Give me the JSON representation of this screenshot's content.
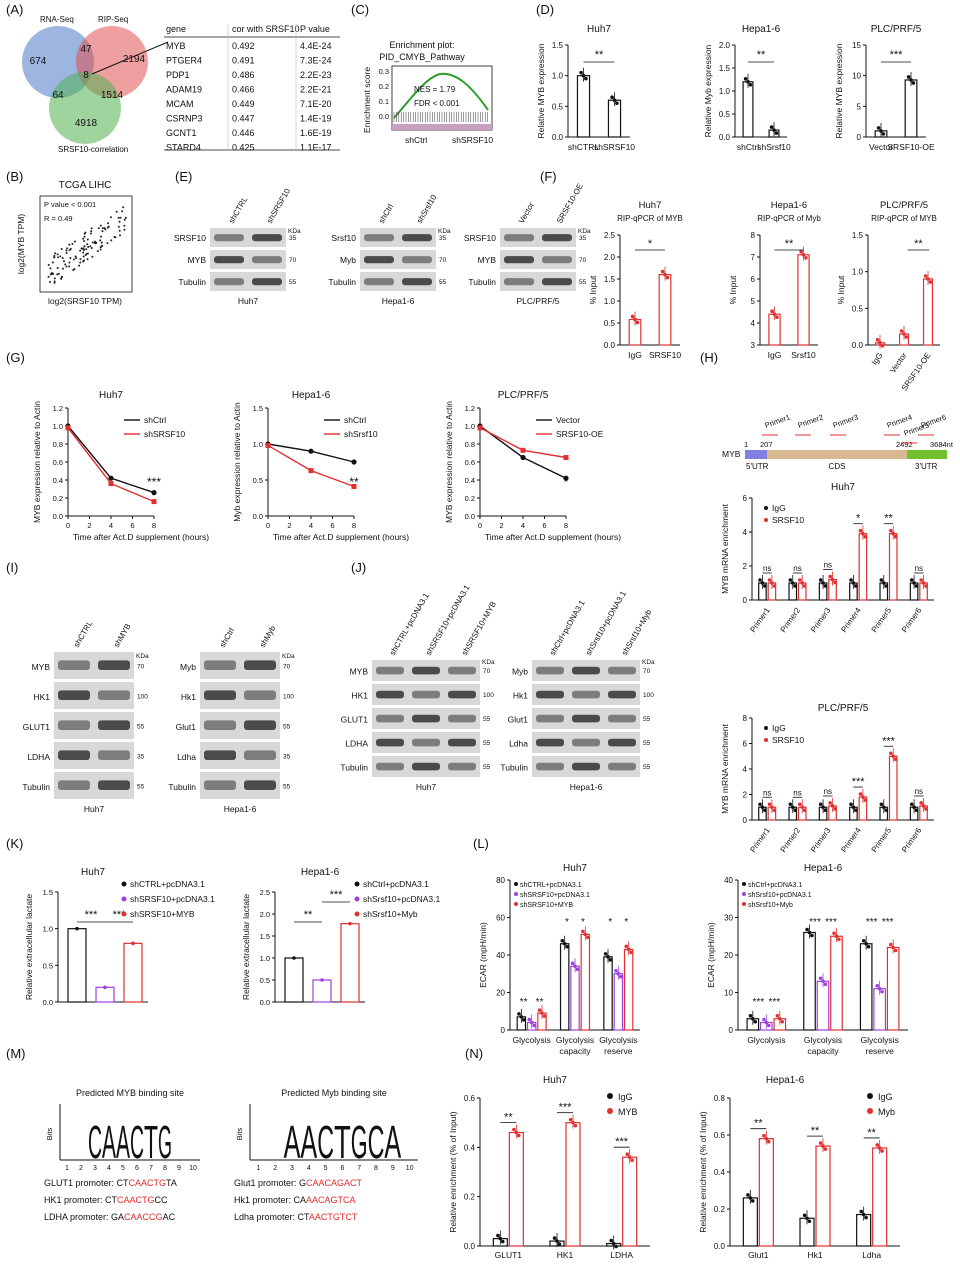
{
  "panel_labels": [
    "(A)",
    "(B)",
    "(C)",
    "(D)",
    "(E)",
    "(F)",
    "(G)",
    "(H)",
    "(I)",
    "(J)",
    "(K)",
    "(L)",
    "(M)",
    "(N)"
  ],
  "venn": {
    "sets": [
      "RNA-Seq",
      "RIP-Seq",
      "SRSF10-correlation"
    ],
    "values": [
      "674",
      "47",
      "2194",
      "8",
      "64",
      "1514",
      "4918"
    ]
  },
  "gene_table": {
    "headers": [
      "gene",
      "cor with SRSF10",
      "P value"
    ],
    "rows": [
      [
        "MYB",
        "0.492",
        "4.4E-24"
      ],
      [
        "PTGER4",
        "0.491",
        "7.3E-24"
      ],
      [
        "PDP1",
        "0.486",
        "2.2E-23"
      ],
      [
        "ADAM19",
        "0.466",
        "2.2E-21"
      ],
      [
        "MCAM",
        "0.449",
        "7.1E-20"
      ],
      [
        "CSRNP3",
        "0.447",
        "1.4E-19"
      ],
      [
        "GCNT1",
        "0.446",
        "1.6E-19"
      ],
      [
        "STARD4",
        "0.425",
        "1.1E-17"
      ]
    ],
    "highlight_color": "#e03030"
  },
  "gsea": {
    "title1": "Enrichment plot:",
    "title2": "PID_CMYB_Pathway",
    "ylabel": "Enrichment score",
    "nes": "NES = 1.79",
    "fdr": "FDR < 0.001",
    "left": "shCtrl",
    "right": "shSRSF10",
    "ticks": [
      "0.3",
      "0.2",
      "0.1",
      "0.0"
    ]
  },
  "panel_b": {
    "title": "TCGA LIHC",
    "p": "P value < 0.001",
    "r": "R = 0.49",
    "xlabel": "log2(SRSF10 TPM)",
    "ylabel": "log2(MYB TPM)"
  },
  "panel_d": [
    {
      "title": "Huh7",
      "ylabel": "Relative MYB expression",
      "cats": [
        "shCTRL",
        "shSRSF10"
      ],
      "sig": "**"
    },
    {
      "title": "Hepa1-6",
      "ylabel": "Relative Myb expression",
      "cats": [
        "shCtrl",
        "shSrsf10"
      ],
      "sig": "**"
    },
    {
      "title": "PLC/PRF/5",
      "ylabel": "Relative MYB expression",
      "cats": [
        "Vector",
        "SRSF10-OE"
      ],
      "sig": "***"
    }
  ],
  "panel_e": [
    {
      "cell": "Huh7",
      "lanes": [
        "shCTRL",
        "shSRSF10"
      ],
      "rows": [
        "SRSF10",
        "MYB",
        "Tubulin"
      ]
    },
    {
      "cell": "Hepa1-6",
      "lanes": [
        "shCtrl",
        "shSrsf10"
      ],
      "rows": [
        "Srsf10",
        "Myb",
        "Tubulin"
      ]
    },
    {
      "cell": "PLC/PRF/5",
      "lanes": [
        "Vector",
        "SRSF10-OE"
      ],
      "rows": [
        "SRSF10",
        "MYB",
        "Tubulin"
      ]
    }
  ],
  "markers_e": [
    "KDa",
    "35",
    "70",
    "55"
  ],
  "panel_f": [
    {
      "title": "Huh7",
      "sub": "RIP-qPCR of MYB",
      "cats": [
        "IgG",
        "SRSF10"
      ],
      "sig": "*"
    },
    {
      "title": "Hepa1-6",
      "sub": "RIP-qPCR of Myb",
      "cats": [
        "IgG",
        "Srsf10"
      ],
      "sig": "**"
    },
    {
      "title": "PLC/PRF/5",
      "sub": "RIP-qPCR of MYB",
      "cats": [
        "IgG",
        "Vector",
        "SRSF10-OE"
      ],
      "sig": "**"
    }
  ],
  "panel_f_ylabel": "% Input",
  "panel_g": [
    {
      "title": "Huh7",
      "legend": [
        "shCtrl",
        "shSRSF10"
      ],
      "ylabel": "MYB expression relative to Actin",
      "sig": "***"
    },
    {
      "title": "Hepa1-6",
      "legend": [
        "shCtrl",
        "shSrsf10"
      ],
      "ylabel": "Myb expression relative to Actin",
      "sig": "**"
    },
    {
      "title": "PLC/PRF/5",
      "legend": [
        "Vector",
        "SRSF10-OE"
      ],
      "ylabel": "MYB expression relative to Actin",
      "sig": "*"
    }
  ],
  "panel_g_xlabel": "Time after Act.D supplement (hours)",
  "panel_h": {
    "gene": "MYB",
    "primers": [
      "Primer1",
      "Primer2",
      "Primer3",
      "Primer4",
      "Primer5",
      "Primer6"
    ],
    "regions": [
      "5'UTR",
      "CDS",
      "3'UTR"
    ],
    "positions": [
      "1",
      "207",
      "2492",
      "3684nt"
    ],
    "charts": [
      {
        "title": "Huh7",
        "legend": [
          "IgG",
          "SRSF10"
        ],
        "sigs": [
          "ns",
          "ns",
          "ns",
          "*",
          "**",
          "ns"
        ]
      },
      {
        "title": "PLC/PRF/5",
        "legend": [
          "IgG",
          "SRSF10"
        ],
        "sigs": [
          "ns",
          "ns",
          "ns",
          "***",
          "***",
          "ns"
        ]
      }
    ],
    "ylabel": "MYB mRNA enrichment"
  },
  "panel_i": [
    {
      "cell": "Huh7",
      "lanes": [
        "shCTRL",
        "shMYB"
      ],
      "rows": [
        "MYB",
        "HK1",
        "GLUT1",
        "LDHA",
        "Tubulin"
      ]
    },
    {
      "cell": "Hepa1-6",
      "lanes": [
        "shCtrl",
        "shMyb"
      ],
      "rows": [
        "Myb",
        "Hk1",
        "Glut1",
        "Ldha",
        "Tubulin"
      ]
    }
  ],
  "panel_j": [
    {
      "cell": "Huh7",
      "lanes": [
        "shCTRL+pcDNA3.1",
        "shSRSF10+pcDNA3.1",
        "shSRSF10+MYB"
      ],
      "rows": [
        "MYB",
        "HK1",
        "GLUT1",
        "LDHA",
        "Tubulin"
      ]
    },
    {
      "cell": "Hepa1-6",
      "lanes": [
        "shCtrl+pcDNA3.1",
        "shSrsf10+pcDNA3.1",
        "shSrsf10+Myb"
      ],
      "rows": [
        "Myb",
        "Hk1",
        "Glut1",
        "Ldha",
        "Tubulin"
      ]
    }
  ],
  "panel_k": [
    {
      "title": "Huh7",
      "legend": [
        "shCTRL+pcDNA3.1",
        "shSRSF10+pcDNA3.1",
        "shSRSF10+MYB"
      ],
      "sigs": [
        "***",
        "***"
      ]
    },
    {
      "title": "Hepa1-6",
      "legend": [
        "shCtrl+pcDNA3.1",
        "shSrsf10+pcDNA3.1",
        "shSrsf10+Myb"
      ],
      "sigs": [
        "**",
        "***"
      ]
    }
  ],
  "panel_k_ylabel": "Relative extracellular lactate",
  "panel_l": [
    {
      "title": "Huh7",
      "legend": [
        "shCTRL+pcDNA3.1",
        "shSRSF10+pcDNA3.1",
        "shSRSF10+MYB"
      ],
      "sigs": [
        "**",
        "**",
        "*",
        "*",
        "*",
        "*"
      ]
    },
    {
      "title": "Hepa1-6",
      "legend": [
        "shCtrl+pcDNA3.1",
        "shSrsf10+pcDNA3.1",
        "shSrsf10+Myb"
      ],
      "sigs": [
        "***",
        "***",
        "***",
        "***",
        "***",
        "***"
      ]
    }
  ],
  "panel_l_ylabel": "ECAR (mpH/min)",
  "panel_l_groups": [
    "Glycolysis",
    "Glycolysis capacity",
    "Glycolysis reserve"
  ],
  "panel_m": [
    {
      "title": "Predicted MYB binding site",
      "logo": "CAACTG",
      "promoters": [
        {
          "name": "GLUT1 promoter:",
          "pre": "CT",
          "site": "CAACTG",
          "post": "TA"
        },
        {
          "name": "HK1 promoter:",
          "pre": "CT",
          "site": "CAACTG",
          "post": "CC"
        },
        {
          "name": "LDHA promoter:",
          "pre": "GA",
          "site": "CAACCG",
          "post": "AC"
        }
      ]
    },
    {
      "title": "Predicted Myb binding site",
      "logo": "AACTGCA",
      "promoters": [
        {
          "name": "Glut1 promoter:",
          "pre": "G",
          "site": "CAACAGACT",
          "post": ""
        },
        {
          "name": "Hk1 promoter:",
          "pre": "CA",
          "site": "AACAGTCA",
          "post": ""
        },
        {
          "name": "Ldha promoter:",
          "pre": "CT",
          "site": "AACTGTCT",
          "post": ""
        }
      ]
    }
  ],
  "panel_m_ylabel": "Bits",
  "panel_n": [
    {
      "title": "Huh7",
      "cats": [
        "GLUT1",
        "HK1",
        "LDHA"
      ],
      "legend": [
        "IgG",
        "MYB"
      ],
      "sigs": [
        "**",
        "***",
        "***"
      ],
      "ticks": [
        "0.0",
        "0.2",
        "0.4",
        "0.6"
      ]
    },
    {
      "title": "Hepa1-6",
      "cats": [
        "Glut1",
        "Hk1",
        "Ldha"
      ],
      "legend": [
        "IgG",
        "Myb"
      ],
      "sigs": [
        "**",
        "**",
        "**"
      ],
      "ticks": [
        "0.0",
        "0.2",
        "0.4",
        "0.6",
        "0.8"
      ]
    }
  ],
  "panel_n_ylabel": "Relative enrichment (% of Input)",
  "chart_data": [
    {
      "type": "bar",
      "panel": "D",
      "title": "Huh7",
      "categories": [
        "shCTRL",
        "shSRSF10"
      ],
      "values": [
        1.0,
        0.6
      ],
      "ylim": [
        0,
        1.5
      ]
    },
    {
      "type": "bar",
      "panel": "D",
      "title": "Hepa1-6",
      "categories": [
        "shCtrl",
        "shSrsf10"
      ],
      "values": [
        1.2,
        0.15
      ],
      "ylim": [
        0,
        2.0
      ]
    },
    {
      "type": "bar",
      "panel": "D",
      "title": "PLC/PRF/5",
      "categories": [
        "Vector",
        "SRSF10-OE"
      ],
      "values": [
        1.0,
        9.3
      ],
      "ylim": [
        0,
        15
      ]
    },
    {
      "type": "bar",
      "panel": "F",
      "title": "Huh7",
      "categories": [
        "IgG",
        "SRSF10"
      ],
      "values": [
        0.58,
        1.6
      ],
      "ylim": [
        0,
        2.5
      ]
    },
    {
      "type": "bar",
      "panel": "F",
      "title": "Hepa1-6",
      "categories": [
        "IgG",
        "Srsf10"
      ],
      "values": [
        4.4,
        7.1
      ],
      "ylim": [
        3,
        8
      ]
    },
    {
      "type": "bar",
      "panel": "F",
      "title": "PLC/PRF/5",
      "categories": [
        "IgG",
        "Vector",
        "SRSF10-OE"
      ],
      "values": [
        0.03,
        0.15,
        0.9
      ],
      "ylim": [
        0,
        1.5
      ]
    },
    {
      "type": "line",
      "panel": "G",
      "title": "Huh7",
      "x": [
        0,
        4,
        8
      ],
      "series": [
        {
          "name": "shCtrl",
          "values": [
            1.0,
            0.42,
            0.26
          ]
        },
        {
          "name": "shSRSF10",
          "values": [
            0.98,
            0.36,
            0.16
          ]
        }
      ],
      "ylim": [
        0,
        1.2
      ]
    },
    {
      "type": "line",
      "panel": "G",
      "title": "Hepa1-6",
      "x": [
        0,
        4,
        8
      ],
      "series": [
        {
          "name": "shCtrl",
          "values": [
            1.0,
            0.9,
            0.75
          ]
        },
        {
          "name": "shSrsf10",
          "values": [
            0.98,
            0.63,
            0.41
          ]
        }
      ],
      "ylim": [
        0,
        1.5
      ]
    },
    {
      "type": "line",
      "panel": "G",
      "title": "PLC/PRF/5",
      "x": [
        0,
        4,
        8
      ],
      "series": [
        {
          "name": "Vector",
          "values": [
            1.0,
            0.65,
            0.42
          ]
        },
        {
          "name": "SRSF10-OE",
          "values": [
            0.98,
            0.73,
            0.65
          ]
        }
      ],
      "ylim": [
        0,
        1.2
      ]
    },
    {
      "type": "bar",
      "panel": "H",
      "title": "Huh7",
      "categories": [
        "Primer1",
        "Primer2",
        "Primer3",
        "Primer4",
        "Primer5",
        "Primer6"
      ],
      "series": [
        {
          "name": "IgG",
          "values": [
            1.0,
            1.0,
            1.0,
            1.0,
            1.0,
            1.0
          ]
        },
        {
          "name": "SRSF10",
          "values": [
            1.0,
            1.0,
            1.2,
            3.9,
            3.9,
            1.0
          ]
        }
      ],
      "ylim": [
        0,
        6
      ]
    },
    {
      "type": "bar",
      "panel": "H",
      "title": "PLC/PRF/5",
      "categories": [
        "Primer1",
        "Primer2",
        "Primer3",
        "Primer4",
        "Primer5",
        "Primer6"
      ],
      "series": [
        {
          "name": "IgG",
          "values": [
            1.0,
            1.0,
            1.0,
            1.0,
            1.0,
            1.0
          ]
        },
        {
          "name": "SRSF10",
          "values": [
            1.0,
            1.0,
            1.1,
            1.8,
            5.0,
            1.1
          ]
        }
      ],
      "ylim": [
        0,
        8
      ]
    },
    {
      "type": "bar",
      "panel": "K",
      "title": "Huh7",
      "categories": [
        "shCTRL+pcDNA3.1",
        "shSRSF10+pcDNA3.1",
        "shSRSF10+MYB"
      ],
      "values": [
        1.0,
        0.2,
        0.8
      ],
      "ylim": [
        0,
        1.5
      ]
    },
    {
      "type": "bar",
      "panel": "K",
      "title": "Hepa1-6",
      "categories": [
        "shCtrl+pcDNA3.1",
        "shSrsf10+pcDNA3.1",
        "shSrsf10+Myb"
      ],
      "values": [
        1.0,
        0.5,
        1.78
      ],
      "ylim": [
        0,
        2.5
      ]
    },
    {
      "type": "bar",
      "panel": "L",
      "title": "Huh7",
      "categories": [
        "Glycolysis",
        "Glycolysis capacity",
        "Glycolysis reserve"
      ],
      "series": [
        {
          "name": "shCTRL+pcDNA3.1",
          "values": [
            7,
            46,
            39
          ]
        },
        {
          "name": "shSRSF10+pcDNA3.1",
          "values": [
            4,
            34,
            30
          ]
        },
        {
          "name": "shSRSF10+MYB",
          "values": [
            9,
            51,
            43
          ]
        }
      ],
      "ylim": [
        0,
        80
      ]
    },
    {
      "type": "bar",
      "panel": "L",
      "title": "Hepa1-6",
      "categories": [
        "Glycolysis",
        "Glycolysis capacity",
        "Glycolysis reserve"
      ],
      "series": [
        {
          "name": "shCtrl+pcDNA3.1",
          "values": [
            3,
            26,
            23
          ]
        },
        {
          "name": "shSrsf10+pcDNA3.1",
          "values": [
            2,
            13,
            11
          ]
        },
        {
          "name": "shSrsf10+Myb",
          "values": [
            3,
            25,
            22
          ]
        }
      ],
      "ylim": [
        0,
        40
      ]
    },
    {
      "type": "bar",
      "panel": "N",
      "title": "Huh7",
      "categories": [
        "GLUT1",
        "HK1",
        "LDHA"
      ],
      "series": [
        {
          "name": "IgG",
          "values": [
            0.03,
            0.02,
            0.01
          ]
        },
        {
          "name": "MYB",
          "values": [
            0.46,
            0.5,
            0.36
          ]
        }
      ],
      "ylim": [
        0,
        0.6
      ]
    },
    {
      "type": "bar",
      "panel": "N",
      "title": "Hepa1-6",
      "categories": [
        "Glut1",
        "Hk1",
        "Ldha"
      ],
      "series": [
        {
          "name": "IgG",
          "values": [
            0.26,
            0.15,
            0.17
          ]
        },
        {
          "name": "Myb",
          "values": [
            0.58,
            0.54,
            0.53
          ]
        }
      ],
      "ylim": [
        0,
        0.8
      ]
    }
  ],
  "colors": {
    "red": "#e03030",
    "black": "#111111",
    "purple": "#a040e0",
    "venn_blue": "#4a78c8",
    "venn_red": "#e05050",
    "venn_green": "#50b050",
    "utr5": "#8080e0",
    "cds": "#d8b890",
    "utr3": "#70c030"
  }
}
